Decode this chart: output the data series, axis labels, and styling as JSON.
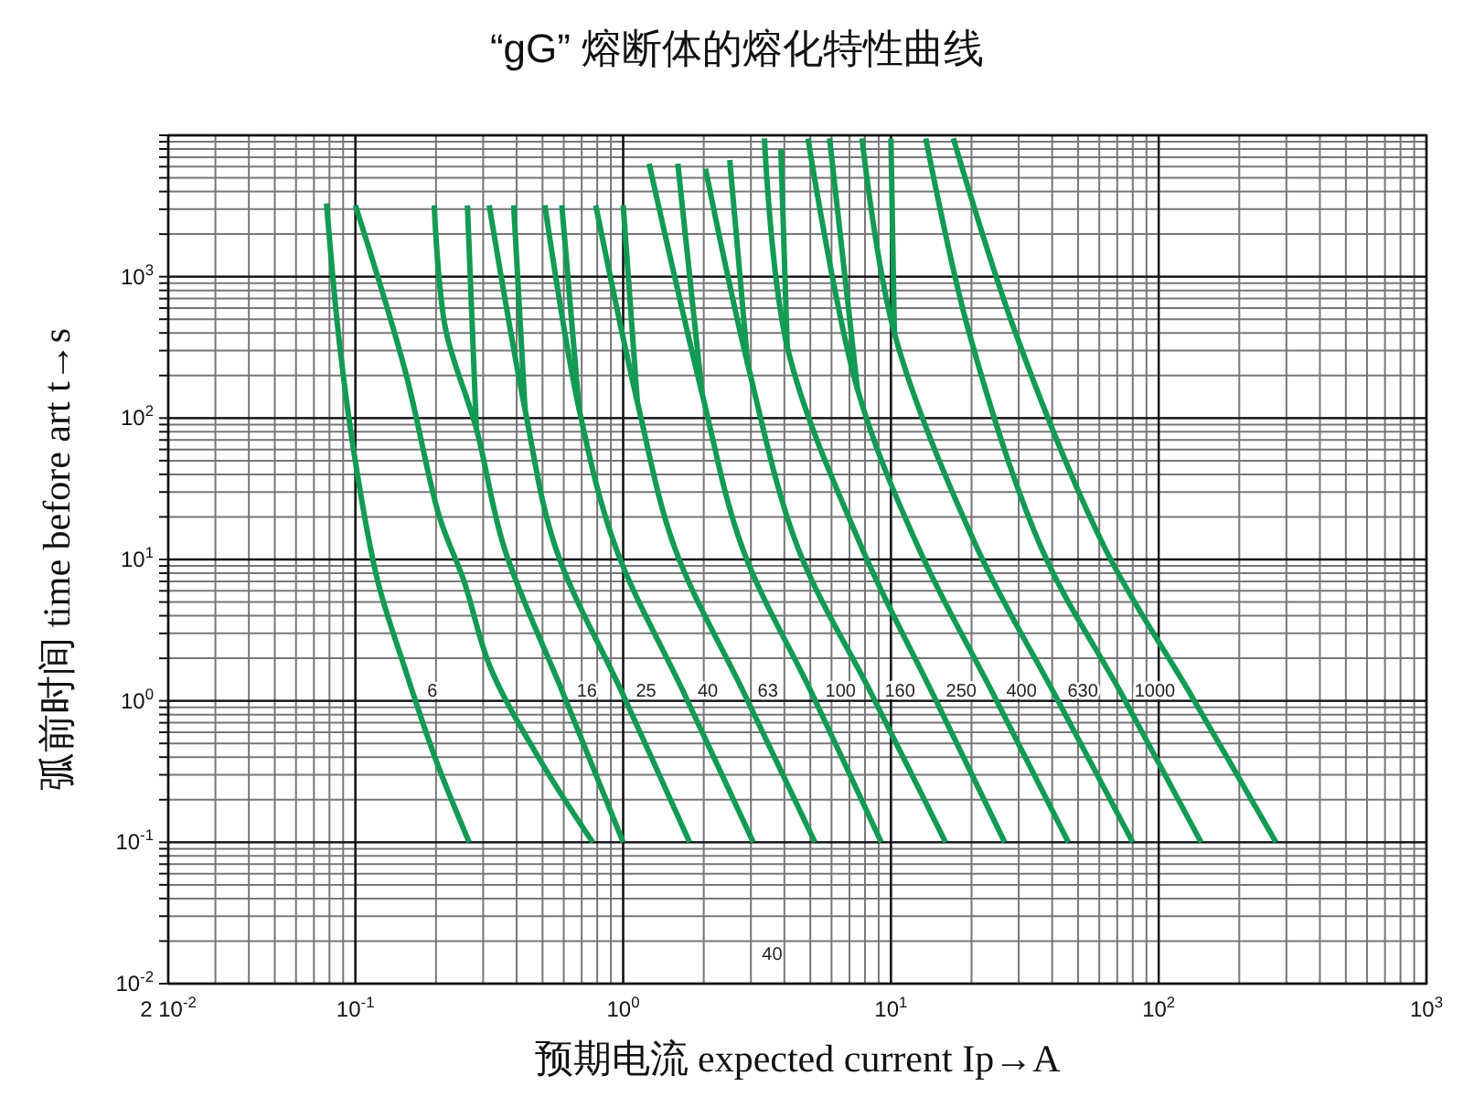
{
  "chart_data": {
    "type": "line",
    "title": "“gG” 熔断体的熔化特性曲线",
    "xlabel": "预期电流 expected current Ip→A",
    "ylabel": "弧前时间 time before art t→s",
    "log": "xy",
    "grid": true,
    "xlim": [
      0.02,
      1000
    ],
    "ylim": [
      0.01,
      10000
    ],
    "xticks": [
      {
        "value": 0.02,
        "label": "2 10$^{-2}$"
      },
      {
        "value": 0.1,
        "label": "10$^{-1}$"
      },
      {
        "value": 1,
        "label": "10$^{0}$"
      },
      {
        "value": 10,
        "label": "10$^{1}$"
      },
      {
        "value": 100,
        "label": "10$^{2}$"
      },
      {
        "value": 1000,
        "label": "10$^{3}$"
      }
    ],
    "yticks": [
      {
        "value": 0.01,
        "label": "10$^{-2}$"
      },
      {
        "value": 0.1,
        "label": "10$^{-1}$"
      },
      {
        "value": 1,
        "label": "10$^{0}$"
      },
      {
        "value": 10,
        "label": "10$^{1}$"
      },
      {
        "value": 100,
        "label": "10$^{2}$"
      },
      {
        "value": 1000,
        "label": "10$^{3}$"
      },
      {
        "value": 10000,
        "label": null
      }
    ],
    "series": [
      {
        "name": "6",
        "color": "#139a55",
        "x": [
          0.078,
          0.087,
          0.1,
          0.121,
          0.153,
          0.2,
          0.266
        ],
        "values": [
          3300,
          350,
          49,
          7.1,
          1.7,
          0.38,
          0.1
        ]
      },
      {
        "color": "#139a55",
        "x": [
          0.1,
          0.153,
          0.206,
          0.254,
          0.32,
          0.49,
          0.77
        ],
        "values": [
          3200,
          220,
          20,
          7.1,
          1.7,
          0.38,
          0.1
        ]
      },
      {
        "name": "16",
        "color": "#139a55",
        "x": [
          0.197,
          0.217,
          0.283,
          0.36,
          0.6,
          1.0
        ],
        "values": [
          3200,
          430,
          84,
          12,
          1.1,
          0.1
        ]
      },
      {
        "color": "#139a55",
        "x": [
          0.262,
          0.283
        ],
        "values": [
          3200,
          84
        ]
      },
      {
        "name": "25",
        "color": "#139a55",
        "x": [
          0.316,
          0.43,
          0.56,
          1.0,
          1.77
        ],
        "values": [
          3200,
          115,
          12,
          1.1,
          0.1
        ]
      },
      {
        "color": "#139a55",
        "x": [
          0.39,
          0.43
        ],
        "values": [
          3200,
          115
        ]
      },
      {
        "name": "40",
        "color": "#139a55",
        "x": [
          0.51,
          0.685,
          0.94,
          1.7,
          3.06
        ],
        "values": [
          3200,
          115,
          12,
          1.1,
          0.1
        ]
      },
      {
        "color": "#139a55",
        "x": [
          0.59,
          0.685
        ],
        "values": [
          3200,
          115
        ]
      },
      {
        "name": "63",
        "color": "#139a55",
        "x": [
          0.79,
          1.13,
          1.56,
          2.85,
          5.2
        ],
        "values": [
          3200,
          130,
          12,
          1.1,
          0.1
        ]
      },
      {
        "color": "#139a55",
        "x": [
          1.0,
          1.13
        ],
        "values": [
          3200,
          130
        ]
      },
      {
        "name": "100",
        "color": "#139a55",
        "x": [
          1.25,
          1.97,
          2.79,
          5.1,
          9.2
        ],
        "values": [
          6300,
          150,
          12,
          1.1,
          0.1
        ]
      },
      {
        "color": "#139a55",
        "x": [
          1.6,
          1.97
        ],
        "values": [
          6300,
          150
        ]
      },
      {
        "name": "160",
        "color": "#139a55",
        "x": [
          2.03,
          2.92,
          4.5,
          8.5,
          16
        ],
        "values": [
          5800,
          240,
          12,
          1.1,
          0.1
        ]
      },
      {
        "color": "#139a55",
        "x": [
          2.5,
          2.92
        ],
        "values": [
          6700,
          240
        ]
      },
      {
        "name": "250",
        "color": "#139a55",
        "x": [
          3.37,
          4.1,
          7.8,
          14.4,
          26.6
        ],
        "values": [
          9500,
          320,
          12,
          1.1,
          0.1
        ]
      },
      {
        "color": "#139a55",
        "x": [
          3.88,
          4.1
        ],
        "values": [
          8000,
          320
        ]
      },
      {
        "name": "400",
        "color": "#139a55",
        "x": [
          4.9,
          7.5,
          12.7,
          24.2,
          46
        ],
        "values": [
          9500,
          160,
          12,
          1.1,
          0.1
        ]
      },
      {
        "color": "#139a55",
        "x": [
          5.9,
          7.5
        ],
        "values": [
          9500,
          160
        ]
      },
      {
        "name": "630",
        "color": "#139a55",
        "x": [
          7.8,
          10.3,
          21,
          41,
          80
        ],
        "values": [
          9500,
          400,
          12,
          1.1,
          0.1
        ]
      },
      {
        "color": "#139a55",
        "x": [
          10,
          10.3
        ],
        "values": [
          9500,
          400
        ]
      },
      {
        "name": "1000",
        "color": "#139a55",
        "x": [
          13.5,
          19.4,
          36.5,
          73,
          144
        ],
        "values": [
          9500,
          430,
          12,
          1.1,
          0.1
        ]
      },
      {
        "color": "#139a55",
        "x": [
          17.1,
          28.8,
          63,
          132,
          274
        ],
        "values": [
          9500,
          430,
          12,
          1.1,
          0.1
        ]
      }
    ],
    "annotations": [
      "40"
    ]
  }
}
